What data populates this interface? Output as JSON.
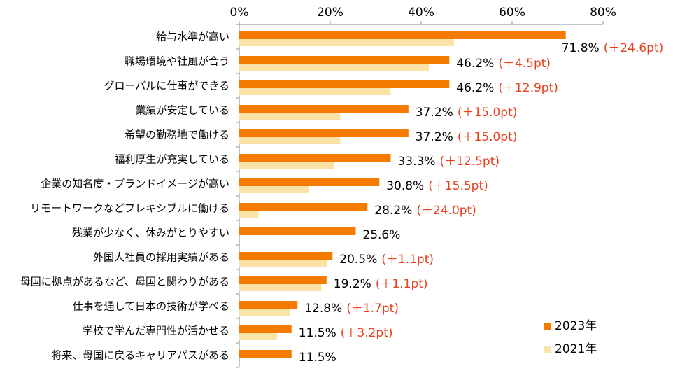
{
  "chart_data": {
    "type": "bar",
    "orientation": "horizontal",
    "title": "",
    "xlabel": "",
    "ylabel": "",
    "xlim": [
      0,
      80
    ],
    "x_ticks": [
      "0%",
      "20%",
      "40%",
      "60%",
      "80%"
    ],
    "tick_values": [
      0,
      20,
      40,
      60,
      80
    ],
    "categories": [
      "給与水準が高い",
      "職場環境や社風が合う",
      "グローバルに仕事ができる",
      "業績が安定している",
      "希望の勤務地で働ける",
      "福利厚生が充実している",
      "企業の知名度・ブランドイメージが高い",
      "リモートワークなどフレキシブルに働ける",
      "残業が少なく、休みがとりやすい",
      "外国人社員の採用実績がある",
      "母国に拠点があるなど、母国と関わりがある",
      "仕事を通して日本の技術が学べる",
      "学校で学んだ専門性が活かせる",
      "将来、母国に戻るキャリアパスがある"
    ],
    "series": [
      {
        "name": "2023年",
        "color": "#f47a00",
        "values": [
          71.8,
          46.2,
          46.2,
          37.2,
          37.2,
          33.3,
          30.8,
          28.2,
          25.6,
          20.5,
          19.2,
          12.8,
          11.5,
          11.5
        ]
      },
      {
        "name": "2021年",
        "color": "#fbe2a6",
        "values": [
          47.2,
          41.7,
          33.3,
          22.2,
          22.2,
          20.8,
          15.3,
          4.2,
          null,
          19.4,
          18.1,
          11.1,
          8.3,
          null
        ]
      }
    ],
    "value_labels": [
      "71.8%",
      "46.2%",
      "46.2%",
      "37.2%",
      "37.2%",
      "33.3%",
      "30.8%",
      "28.2%",
      "25.6%",
      "20.5%",
      "19.2%",
      "12.8%",
      "11.5%",
      "11.5%"
    ],
    "diff_labels": [
      "(＋24.6pt)",
      "(＋4.5pt)",
      "(＋12.9pt)",
      "(＋15.0pt)",
      "(＋15.0pt)",
      "(＋12.5pt)",
      "(＋15.5pt)",
      "(＋24.0pt)",
      "",
      "(＋1.1pt)",
      "(＋1.1pt)",
      "(＋1.7pt)",
      "(＋3.2pt)",
      ""
    ],
    "diff_color": "#e8401c",
    "legend": [
      "2023年",
      "2021年"
    ],
    "legend_position": "bottom-right",
    "grid": false
  }
}
